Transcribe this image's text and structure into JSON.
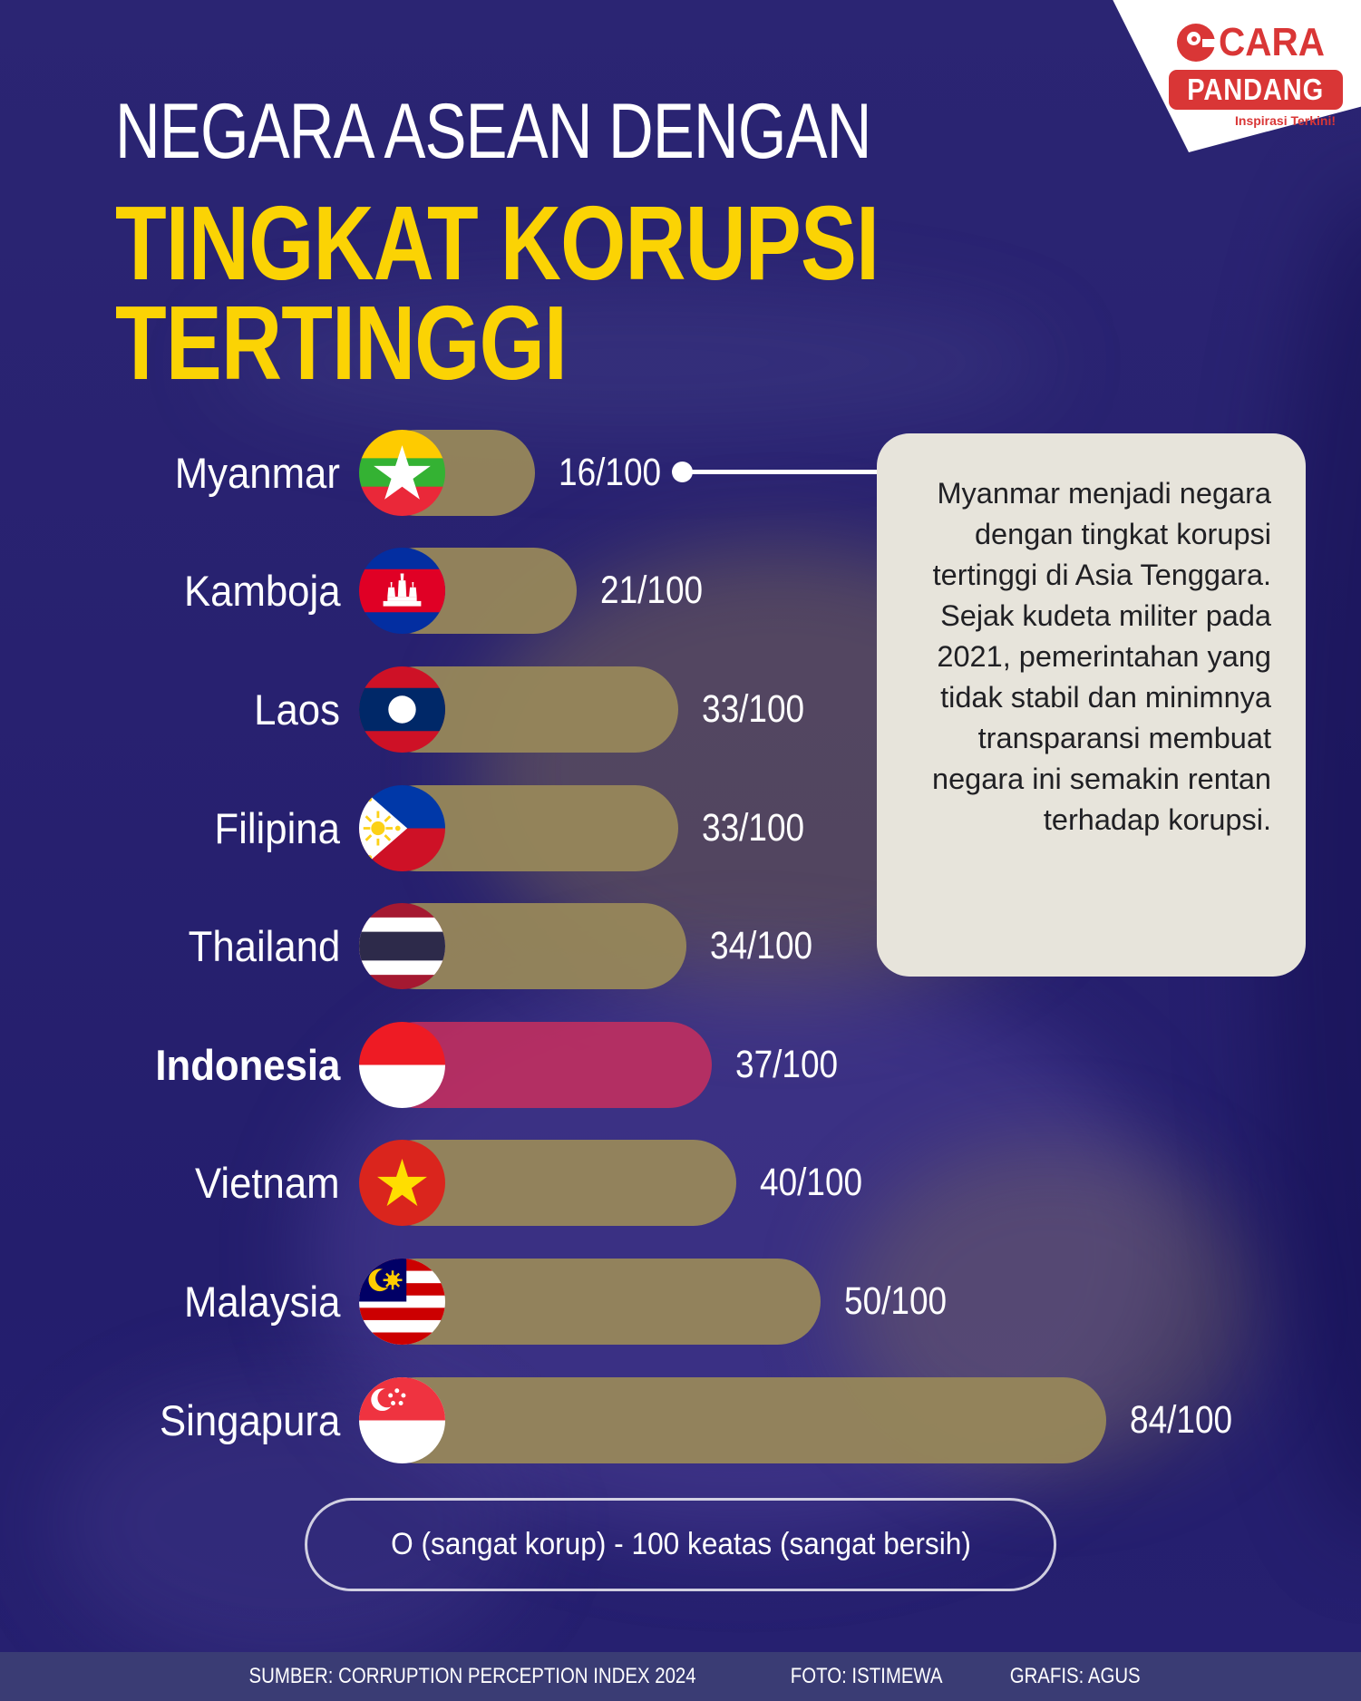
{
  "title": {
    "line1": "NEGARA ASEAN DENGAN",
    "line2": "TINGKAT KORUPSI",
    "line3": "TERTINGGI"
  },
  "logo": {
    "name_top": "CARA",
    "name_bottom": "PANDANG",
    "tagline": "Inspirasi Terkini!"
  },
  "chart_data": {
    "type": "bar",
    "orientation": "horizontal",
    "title": "Negara ASEAN dengan tingkat korupsi tertinggi",
    "xlim": [
      0,
      100
    ],
    "unit": "/100",
    "legend_position": "bottom",
    "categories": [
      "Myanmar",
      "Kamboja",
      "Laos",
      "Filipina",
      "Thailand",
      "Indonesia",
      "Vietnam",
      "Malaysia",
      "Singapura"
    ],
    "values": [
      16,
      21,
      33,
      33,
      34,
      37,
      40,
      50,
      84
    ],
    "rows": [
      {
        "label": "Myanmar",
        "score": 16,
        "display": "16/100",
        "flag": "myanmar-flag",
        "highlight": false,
        "has_callout": true
      },
      {
        "label": "Kamboja",
        "score": 21,
        "display": "21/100",
        "flag": "cambodia-flag",
        "highlight": false,
        "has_callout": false
      },
      {
        "label": "Laos",
        "score": 33,
        "display": "33/100",
        "flag": "laos-flag",
        "highlight": false,
        "has_callout": false
      },
      {
        "label": "Filipina",
        "score": 33,
        "display": "33/100",
        "flag": "philippines-flag",
        "highlight": false,
        "has_callout": false
      },
      {
        "label": "Thailand",
        "score": 34,
        "display": "34/100",
        "flag": "thailand-flag",
        "highlight": false,
        "has_callout": false
      },
      {
        "label": "Indonesia",
        "score": 37,
        "display": "37/100",
        "flag": "indonesia-flag",
        "highlight": true,
        "has_callout": false
      },
      {
        "label": "Vietnam",
        "score": 40,
        "display": "40/100",
        "flag": "vietnam-flag",
        "highlight": false,
        "has_callout": false
      },
      {
        "label": "Malaysia",
        "score": 50,
        "display": "50/100",
        "flag": "malaysia-flag",
        "highlight": false,
        "has_callout": false
      },
      {
        "label": "Singapura",
        "score": 84,
        "display": "84/100",
        "flag": "singapore-flag",
        "highlight": false,
        "has_callout": false
      }
    ]
  },
  "callout": {
    "points_to": "Myanmar",
    "text": "Myanmar menjadi negara dengan tingkat korupsi tertinggi di Asia Tenggara. Sejak kudeta militer pada 2021, pemerintahan yang tidak stabil dan minimnya transparansi membuat negara ini semakin rentan terhadap korupsi."
  },
  "legend_pill": "O (sangat korup) - 100 keatas (sangat bersih)",
  "footer": {
    "source": "SUMBER: CORRUPTION PERCEPTION INDEX 2024",
    "photo": "FOTO: ISTIMEWA",
    "graphics": "GRAFIS: AGUS"
  },
  "colors": {
    "background_navy": "#282170",
    "bar_tan": "#97875A",
    "bar_highlight_red": "#C42F5F",
    "title_yellow": "#FBD304",
    "callout_background": "#E7E4DB",
    "footer_bar": "#3A3C74",
    "logo_red": "#D93636"
  }
}
